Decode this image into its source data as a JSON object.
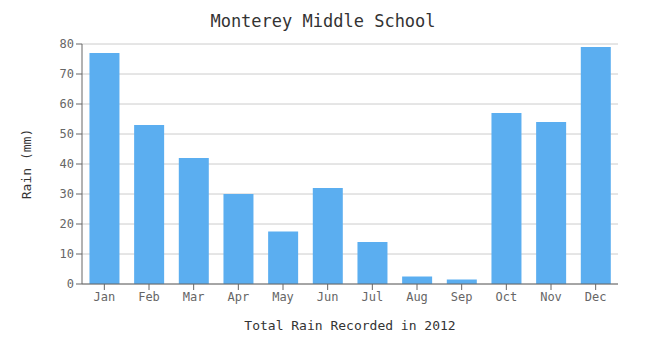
{
  "chart_data": {
    "type": "bar",
    "title": "Monterey Middle School",
    "xlabel": "Total Rain Recorded in 2012",
    "ylabel": "Rain (mm)",
    "categories": [
      "Jan",
      "Feb",
      "Mar",
      "Apr",
      "May",
      "Jun",
      "Jul",
      "Aug",
      "Sep",
      "Oct",
      "Nov",
      "Dec"
    ],
    "values": [
      77,
      53,
      42,
      30,
      17.5,
      32,
      14,
      2.5,
      1.5,
      57,
      54,
      79
    ],
    "color": "#5BAEF0",
    "ylim": [
      0,
      80
    ],
    "yticks": [
      0,
      10,
      20,
      30,
      40,
      50,
      60,
      70,
      80
    ],
    "grid": true
  }
}
